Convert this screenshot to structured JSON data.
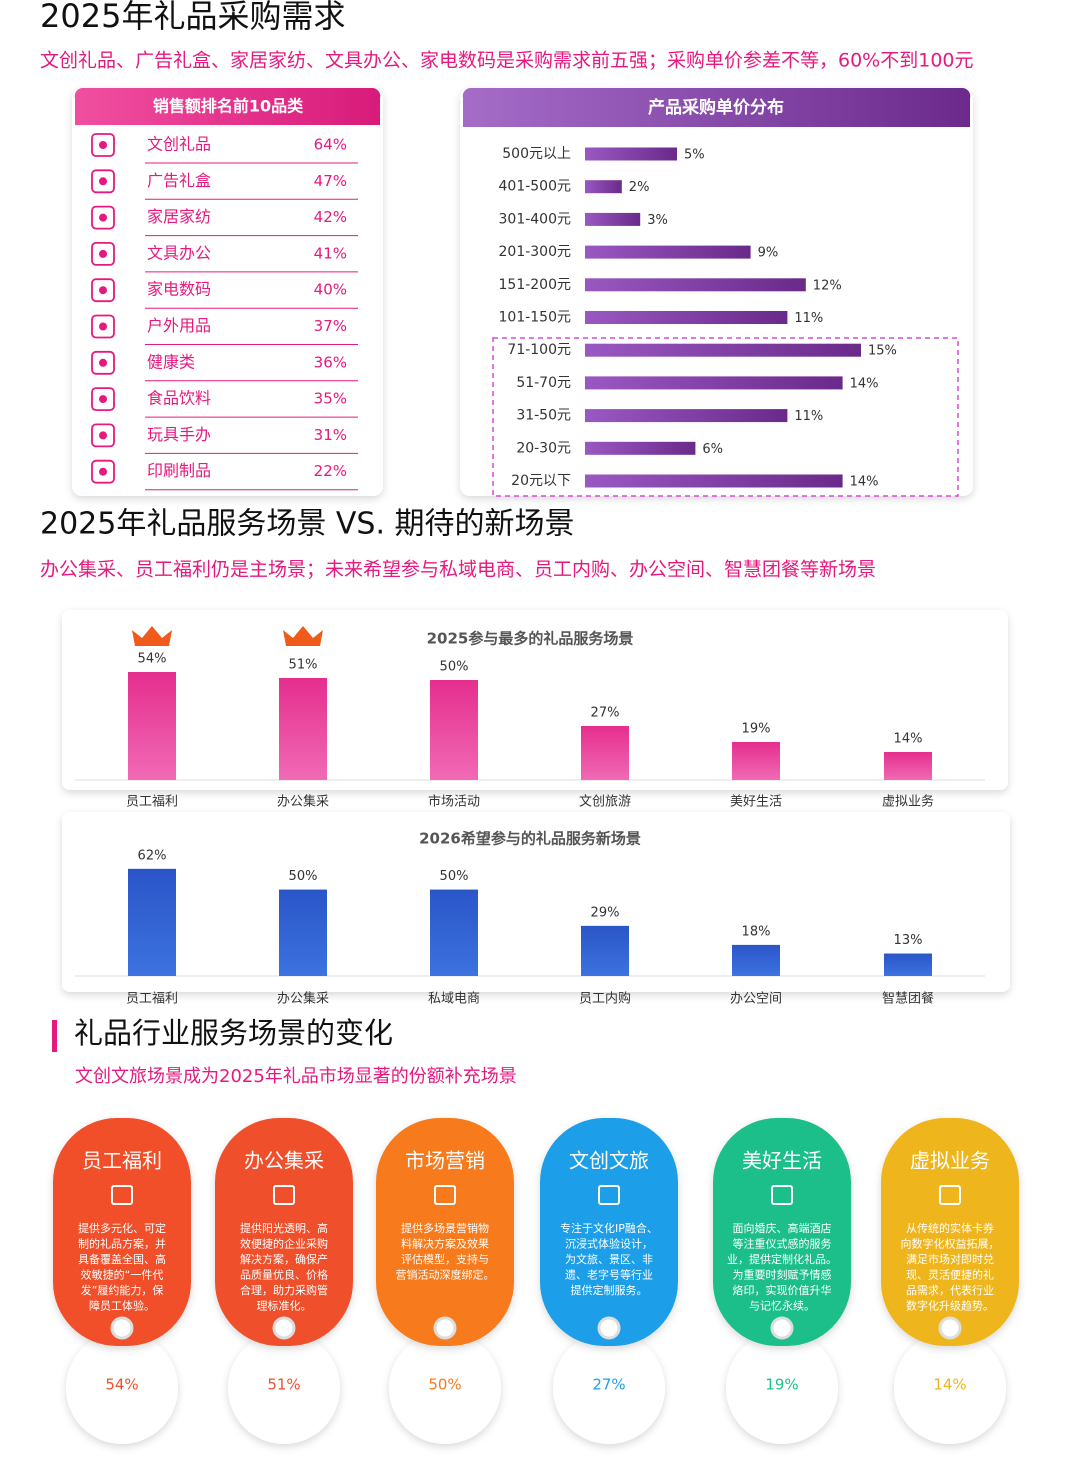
{
  "sections": [
    {
      "title": "2025年礼品采购需求",
      "subtitle": "文创礼品、广告礼盒、家居家纺、文具办公、家电数码是采购需求前五强；采购单价参差不等，60%不到100元"
    },
    {
      "title": "2025年礼品服务场景 VS. 期待的新场景",
      "subtitle": "办公集采、员工福利仍是主场景；未来希望参与私域电商、员工内购、办公空间、智慧团餐等新场景"
    },
    {
      "title": "礼品行业服务场景的变化",
      "subtitle": "文创文旅场景成为2025年礼品市场显著的份额补充场景"
    }
  ],
  "chart_data": [
    {
      "type": "list",
      "title": "销售额排名前10品类",
      "color": "#e6197e",
      "categories": [
        "文创礼品",
        "广告礼盒",
        "家居家纺",
        "文具办公",
        "家电数码",
        "户外用品",
        "健康类",
        "食品饮料",
        "玩具手办",
        "印刷制品"
      ],
      "values": [
        64,
        47,
        42,
        41,
        40,
        37,
        36,
        35,
        31,
        22
      ],
      "value_labels": [
        "64%",
        "47%",
        "42%",
        "41%",
        "40%",
        "37%",
        "36%",
        "35%",
        "31%",
        "22%"
      ]
    },
    {
      "type": "hbar",
      "title": "产品采购单价分布",
      "color": "#7d3c98",
      "xlim": [
        0,
        20
      ],
      "categories": [
        "500元以上",
        "401-500元",
        "301-400元",
        "201-300元",
        "151-200元",
        "101-150元",
        "71-100元",
        "51-70元",
        "31-50元",
        "20-30元",
        "20元以下"
      ],
      "values": [
        5,
        2,
        3,
        9,
        12,
        11,
        15,
        14,
        11,
        6,
        14
      ],
      "value_labels": [
        "5%",
        "2%",
        "3%",
        "9%",
        "12%",
        "11%",
        "15%",
        "14%",
        "11%",
        "6%",
        "14%"
      ]
    },
    {
      "type": "bar",
      "title": "2025参与最多的礼品服务场景",
      "color": "#e8399a",
      "ylim": [
        0,
        60
      ],
      "categories": [
        "员工福利",
        "办公集采",
        "市场活动",
        "文创旅游",
        "美好生活",
        "虚拟业务"
      ],
      "values": [
        54,
        51,
        50,
        27,
        19,
        14
      ],
      "value_labels": [
        "54%",
        "51%",
        "50%",
        "27%",
        "19%",
        "14%"
      ]
    },
    {
      "type": "bar",
      "title": "2026希望参与的礼品服务新场景",
      "color": "#2f5fd0",
      "ylim": [
        0,
        70
      ],
      "categories": [
        "员工福利",
        "办公集采",
        "私域电商",
        "员工内购",
        "办公空间",
        "智慧团餐"
      ],
      "values": [
        62,
        50,
        50,
        29,
        18,
        13
      ],
      "value_labels": [
        "62%",
        "50%",
        "50%",
        "29%",
        "18%",
        "13%"
      ]
    },
    {
      "type": "cards",
      "categories": [
        "员工福利",
        "办公集采",
        "市场营销",
        "文创文旅",
        "美好生活",
        "虚拟业务"
      ],
      "colors": [
        "#f0502a",
        "#ef4f2b",
        "#f77a1c",
        "#1f9fe8",
        "#1fbf8a",
        "#efb51c"
      ],
      "descriptions": [
        [
          "提供多元化、可定",
          "制的礼品方案，并",
          "具备覆盖全国、高",
          "效敏捷的“一件代",
          "发”履约能力，保",
          "障员工体验。"
        ],
        [
          "提供阳光透明、高",
          "效便捷的企业采购",
          "解决方案，确保产",
          "品质量优良、价格",
          "合理，助力采购管",
          "理标准化。"
        ],
        [
          "提供多场景营销物",
          "料解决方案及效果",
          "评估模型，支持与",
          "营销活动深度绑定。"
        ],
        [
          "专注于文化IP融合、",
          "沉浸式体验设计，",
          "为文旅、景区、非",
          "遗、老字号等行业",
          "提供定制服务。"
        ],
        [
          "面向婚庆、高端酒店",
          "等注重仪式感的服务",
          "业，提供定制化礼品。",
          "为重要时刻赋予情感",
          "烙印，实现价值升华",
          "与记忆永续。"
        ],
        [
          "从传统的实体卡券",
          "向数字化权益拓展，",
          "满足市场对即时兑",
          "现、灵活便捷的礼",
          "品需求，代表行业",
          "数字化升级趋势。"
        ]
      ],
      "values": [
        54,
        51,
        50,
        27,
        19,
        14
      ],
      "value_labels": [
        "54%",
        "51%",
        "50%",
        "27%",
        "19%",
        "14%"
      ]
    }
  ]
}
